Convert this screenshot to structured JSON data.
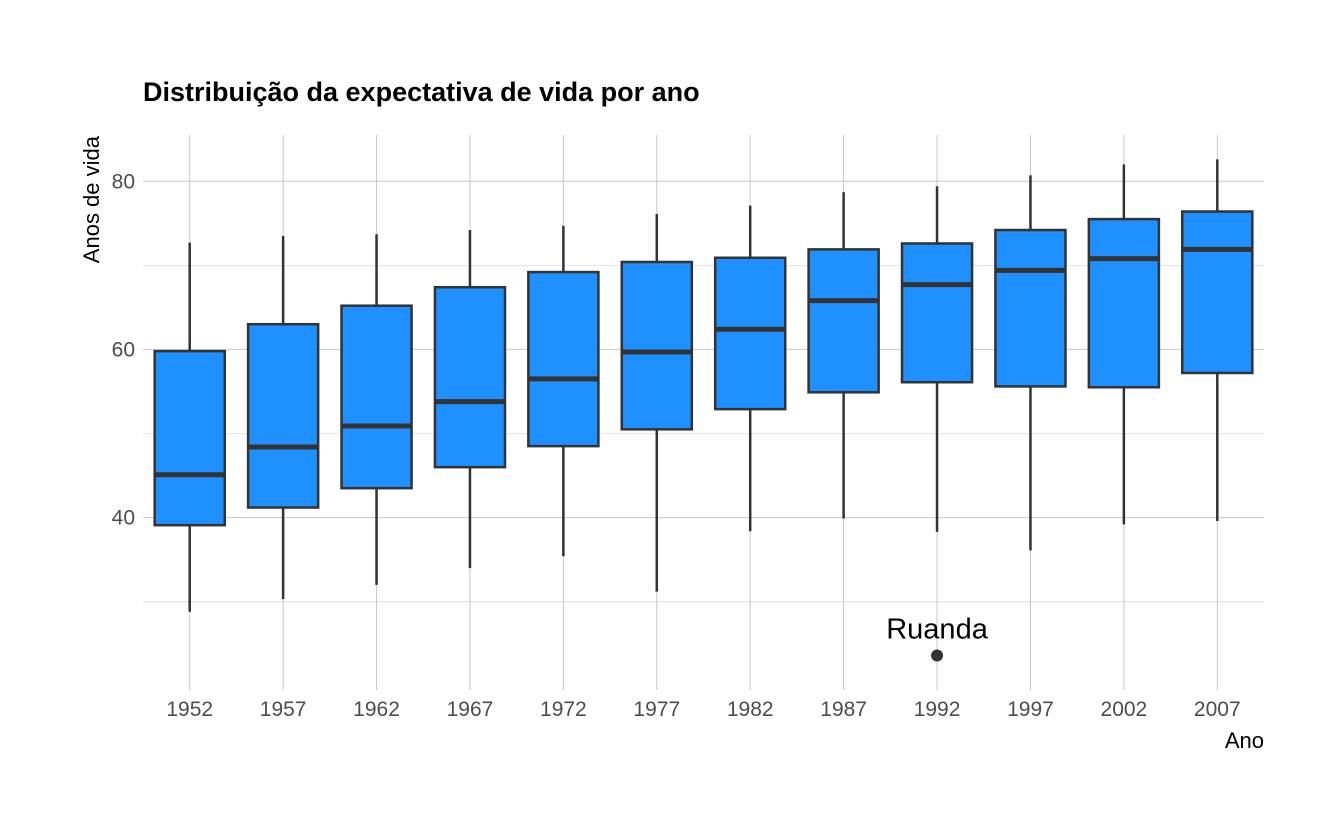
{
  "chart_data": {
    "type": "boxplot",
    "title": "Distribuição da expectativa de vida por ano",
    "xlabel": "Ano",
    "ylabel": "Anos de vida",
    "ylim": [
      19.5,
      85.5
    ],
    "yticks": [
      40,
      60,
      80
    ],
    "grid": true,
    "fill_color": "#1e90ff",
    "line_color": "#333333",
    "categories": [
      "1952",
      "1957",
      "1962",
      "1967",
      "1972",
      "1977",
      "1982",
      "1987",
      "1992",
      "1997",
      "2002",
      "2007"
    ],
    "boxes": [
      {
        "category": "1952",
        "min": 28.8,
        "q1": 39.1,
        "median": 45.1,
        "q3": 59.8,
        "max": 72.7
      },
      {
        "category": "1957",
        "min": 30.3,
        "q1": 41.2,
        "median": 48.4,
        "q3": 63.0,
        "max": 73.5
      },
      {
        "category": "1962",
        "min": 32.0,
        "q1": 43.5,
        "median": 50.9,
        "q3": 65.2,
        "max": 73.7
      },
      {
        "category": "1967",
        "min": 34.0,
        "q1": 46.0,
        "median": 53.8,
        "q3": 67.4,
        "max": 74.2
      },
      {
        "category": "1972",
        "min": 35.4,
        "q1": 48.5,
        "median": 56.5,
        "q3": 69.2,
        "max": 74.7
      },
      {
        "category": "1977",
        "min": 31.2,
        "q1": 50.5,
        "median": 59.7,
        "q3": 70.4,
        "max": 76.1
      },
      {
        "category": "1982",
        "min": 38.4,
        "q1": 52.9,
        "median": 62.4,
        "q3": 70.9,
        "max": 77.1
      },
      {
        "category": "1987",
        "min": 39.9,
        "q1": 54.9,
        "median": 65.8,
        "q3": 71.9,
        "max": 78.7
      },
      {
        "category": "1992",
        "min": 38.3,
        "q1": 56.1,
        "median": 67.7,
        "q3": 72.6,
        "max": 79.4
      },
      {
        "category": "1997",
        "min": 36.1,
        "q1": 55.6,
        "median": 69.4,
        "q3": 74.2,
        "max": 80.7
      },
      {
        "category": "2002",
        "min": 39.2,
        "q1": 55.5,
        "median": 70.8,
        "q3": 75.5,
        "max": 82.0
      },
      {
        "category": "2007",
        "min": 39.6,
        "q1": 57.2,
        "median": 71.9,
        "q3": 76.4,
        "max": 82.6
      }
    ],
    "outliers": [
      {
        "category": "1992",
        "value": 23.6,
        "label": "Ruanda"
      }
    ]
  }
}
